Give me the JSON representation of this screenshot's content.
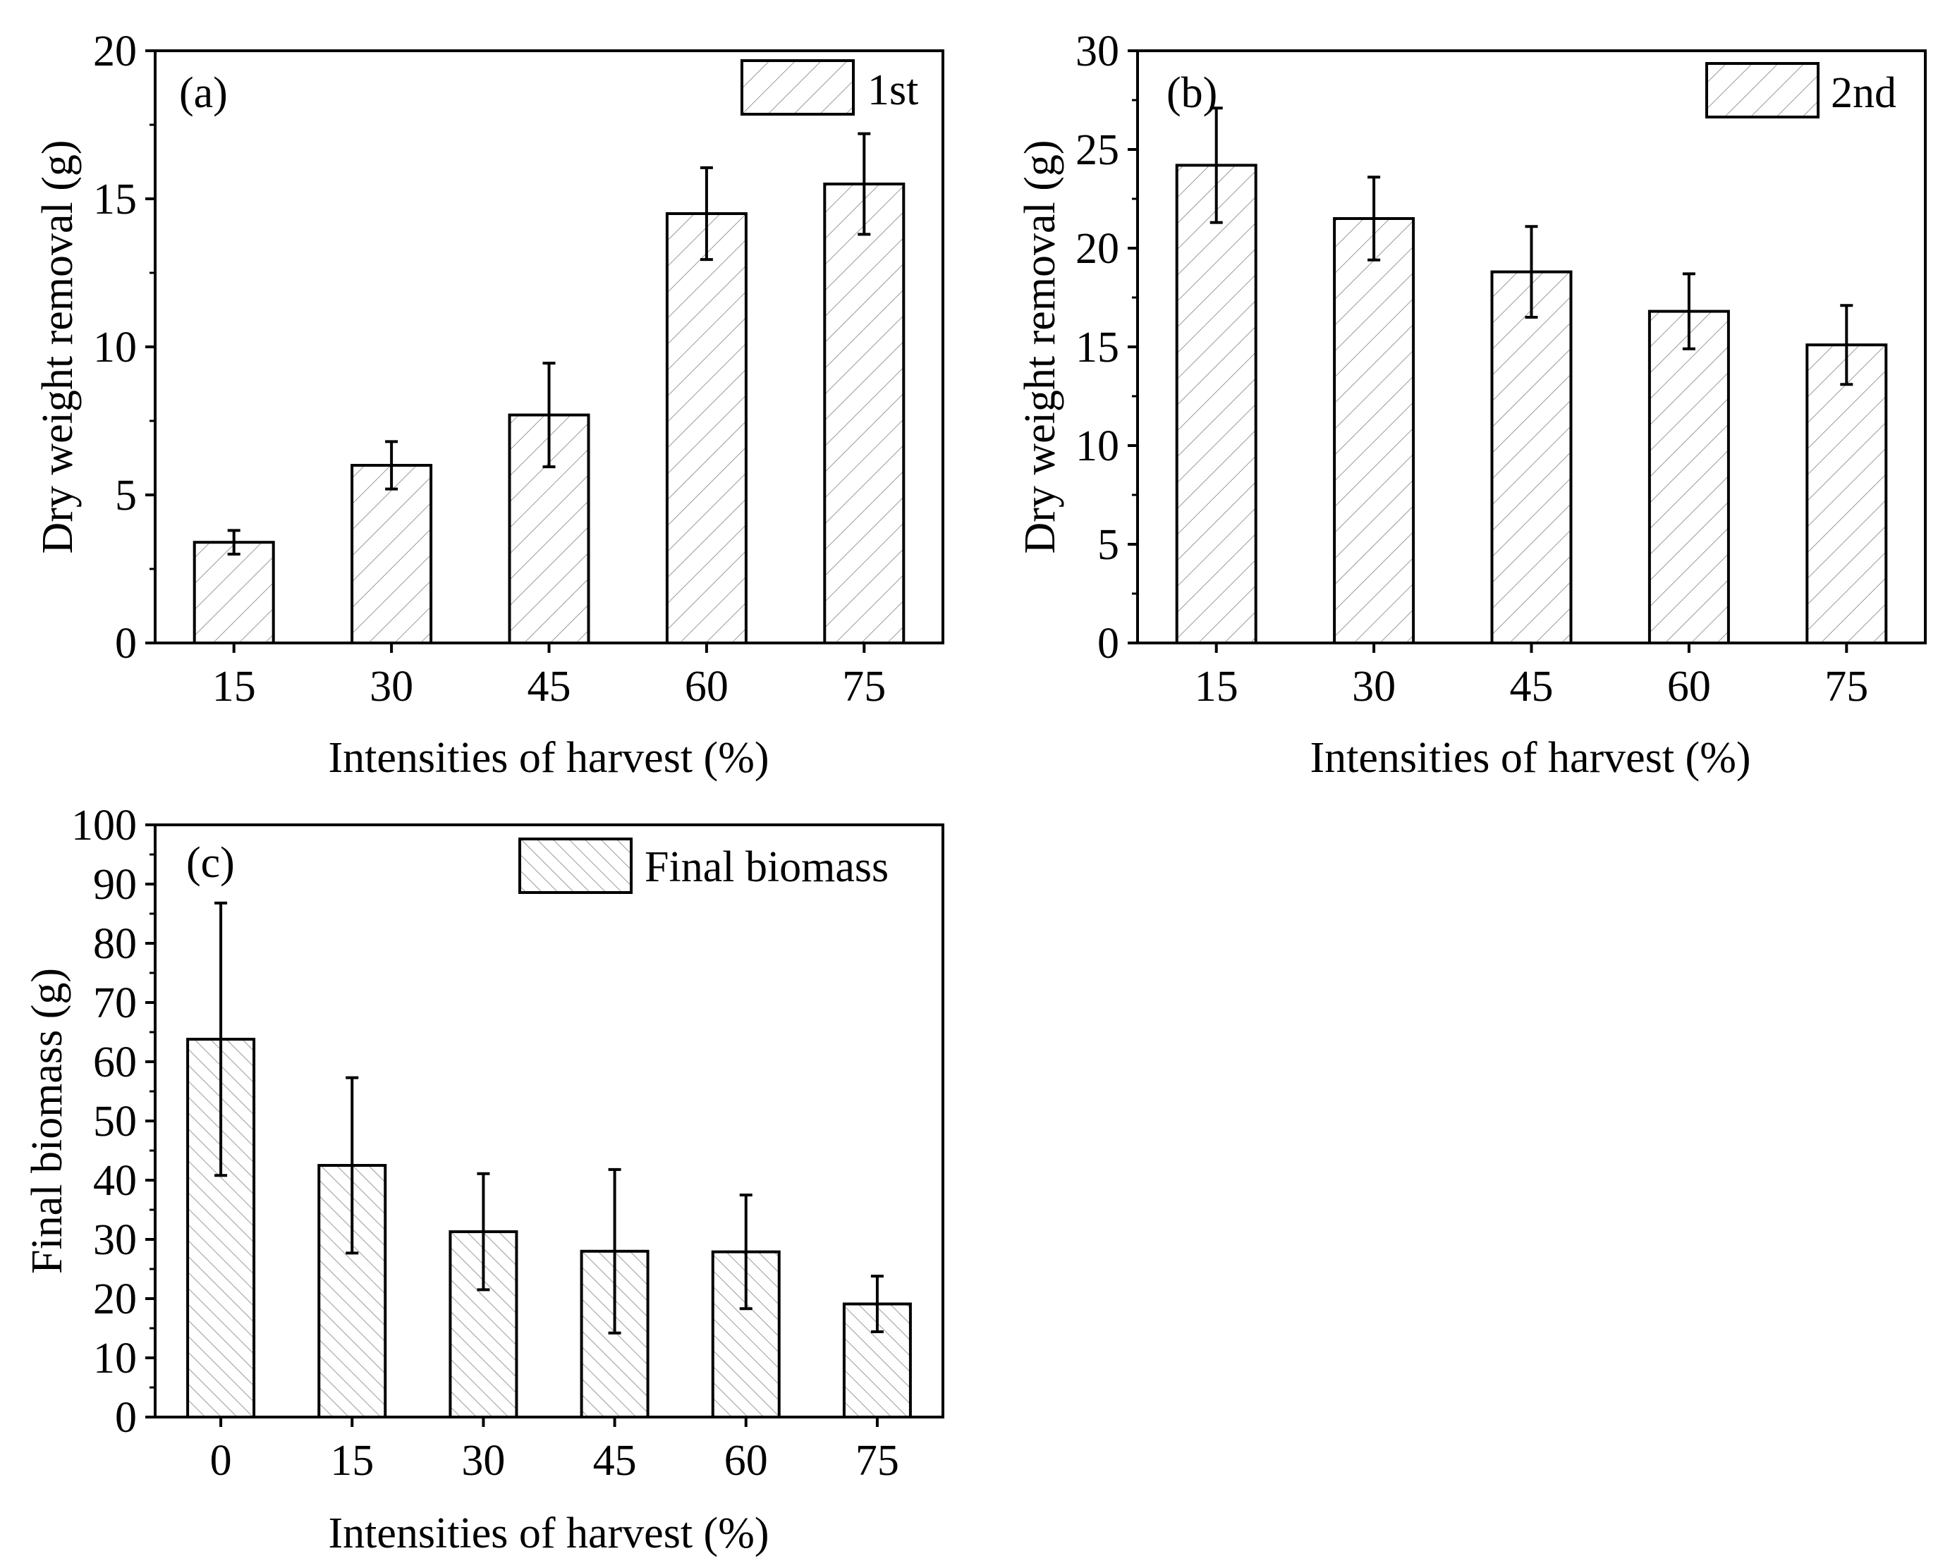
{
  "chart_data": [
    {
      "id": "a",
      "type": "bar",
      "panel_label": "(a)",
      "legend": "1st",
      "hatch": "forward",
      "xlabel": "Intensities of harvest (%)",
      "ylabel": "Dry weight removal (g)",
      "ylim": [
        0,
        20
      ],
      "yticks": [
        0,
        5,
        10,
        15,
        20
      ],
      "categories": [
        "15",
        "30",
        "45",
        "60",
        "75"
      ],
      "values": [
        3.4,
        6.0,
        7.7,
        14.5,
        15.5
      ],
      "errors": [
        0.4,
        0.8,
        1.75,
        1.55,
        1.7
      ]
    },
    {
      "id": "b",
      "type": "bar",
      "panel_label": "(b)",
      "legend": "2nd",
      "hatch": "forward",
      "xlabel": "Intensities of harvest (%)",
      "ylabel": "Dry weight removal (g)",
      "ylim": [
        0,
        30
      ],
      "yticks": [
        0,
        5,
        10,
        15,
        20,
        25,
        30
      ],
      "categories": [
        "15",
        "30",
        "45",
        "60",
        "75"
      ],
      "values": [
        24.2,
        21.5,
        18.8,
        16.8,
        15.1
      ],
      "errors": [
        2.9,
        2.1,
        2.3,
        1.9,
        2.0
      ]
    },
    {
      "id": "c",
      "type": "bar",
      "panel_label": "(c)",
      "legend": "Final biomass",
      "hatch": "backward",
      "xlabel": "Intensities of harvest (%)",
      "ylabel": "Final biomass (g)",
      "ylim": [
        0,
        100
      ],
      "yticks": [
        0,
        10,
        20,
        30,
        40,
        50,
        60,
        70,
        80,
        90,
        100
      ],
      "categories": [
        "0",
        "15",
        "30",
        "45",
        "60",
        "75"
      ],
      "values": [
        63.8,
        42.5,
        31.3,
        28.0,
        27.9,
        19.1
      ],
      "errors": [
        23.0,
        14.8,
        9.8,
        13.8,
        9.6,
        4.7
      ]
    }
  ]
}
